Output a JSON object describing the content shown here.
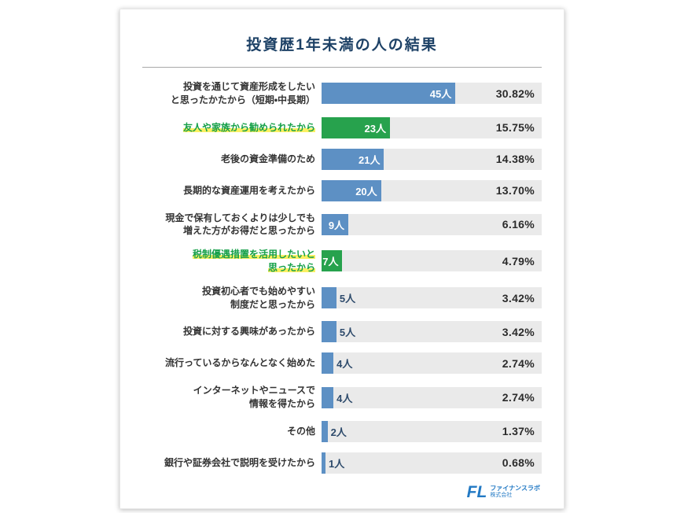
{
  "title": "投資歴1年未満の人の結果",
  "colors": {
    "bar_default": "#5d90c4",
    "bar_highlight": "#27a24d",
    "track": "#eaeaea",
    "highlight_marker": "#fbf062",
    "highlight_text": "#16a049",
    "title_text": "#1d4166"
  },
  "chart_data": {
    "type": "bar",
    "orientation": "horizontal",
    "title": "投資歴1年未満の人の結果",
    "unit": "人",
    "categories": [
      "投資を通じて資産形成をしたい\nと思ったかたから（短期・中長期）",
      "友人や家族から勧められたから",
      "老後の資金準備のため",
      "長期的な資産運用を考えたから",
      "現金で保有しておくよりは少しでも\n増えた方がお得だと思ったから",
      "税制優遇措置を活用したいと\n思ったから",
      "投資初心者でも始めやすい\n制度だと思ったから",
      "投資に対する興味があったから",
      "流行っているからなんとなく始めた",
      "インターネットやニュースで\n情報を得たから",
      "その他",
      "銀行や証券会社で説明を受けたから"
    ],
    "values": [
      45,
      23,
      21,
      20,
      9,
      7,
      5,
      5,
      4,
      4,
      2,
      1
    ],
    "value_labels": [
      "45人",
      "23人",
      "21人",
      "20人",
      "9人",
      "7人",
      "5人",
      "5人",
      "4人",
      "4人",
      "2人",
      "1人"
    ],
    "percentages": [
      "30.82%",
      "15.75%",
      "14.38%",
      "13.70%",
      "6.16%",
      "4.79%",
      "3.42%",
      "3.42%",
      "2.74%",
      "2.74%",
      "1.37%",
      "0.68%"
    ],
    "highlighted_indices": [
      1,
      5
    ],
    "xlim": [
      0,
      74
    ],
    "inside_value_label_min": 7,
    "grid": false,
    "legend": false
  },
  "footer": {
    "logo_mark": "FL",
    "company_line1": "ファイナンスラボ",
    "company_line2": "株式会社"
  }
}
